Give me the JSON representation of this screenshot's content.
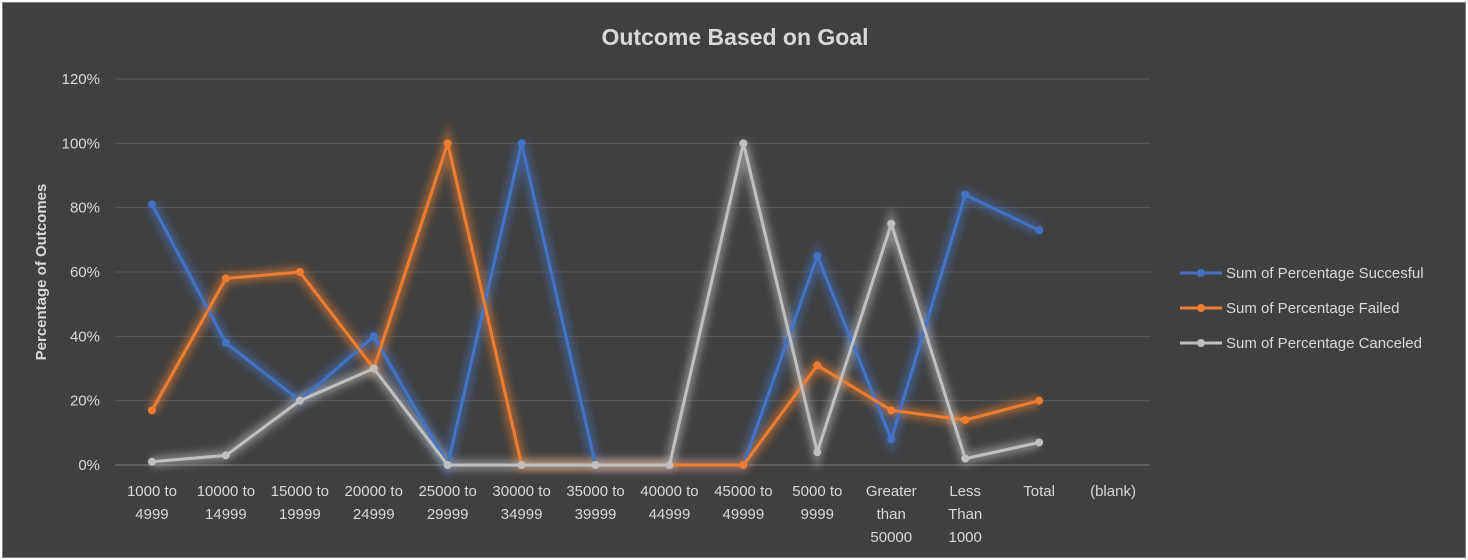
{
  "chart_data": {
    "type": "line",
    "title": "Outcome Based on Goal",
    "xlabel": "",
    "ylabel": "Percentage of Outcomes",
    "categories": [
      [
        "1000 to",
        "4999"
      ],
      [
        "10000 to",
        "14999"
      ],
      [
        "15000 to",
        "19999"
      ],
      [
        "20000 to",
        "24999"
      ],
      [
        "25000 to",
        "29999"
      ],
      [
        "30000 to",
        "34999"
      ],
      [
        "35000 to",
        "39999"
      ],
      [
        "40000 to",
        "44999"
      ],
      [
        "45000 to",
        "49999"
      ],
      [
        "5000 to",
        "9999"
      ],
      [
        "Greater",
        "than",
        "50000"
      ],
      [
        "Less",
        "Than",
        "1000"
      ],
      [
        "Total"
      ],
      [
        "(blank)"
      ]
    ],
    "ylim": [
      0,
      1.2
    ],
    "yticks": [
      0,
      0.2,
      0.4,
      0.6,
      0.8,
      1.0,
      1.2
    ],
    "ytick_labels": [
      "0%",
      "20%",
      "40%",
      "60%",
      "80%",
      "100%",
      "120%"
    ],
    "grid": true,
    "legend_position": "right",
    "series": [
      {
        "name": "Sum of Percentage Succesful",
        "color": "#4472c4",
        "values": [
          0.81,
          0.38,
          0.2,
          0.4,
          0.0,
          1.0,
          0.0,
          0.0,
          0.0,
          0.65,
          0.08,
          0.84,
          0.73,
          null
        ]
      },
      {
        "name": "Sum of Percentage Failed",
        "color": "#ed7d31",
        "values": [
          0.17,
          0.58,
          0.6,
          0.3,
          1.0,
          0.0,
          0.0,
          0.0,
          0.0,
          0.31,
          0.17,
          0.14,
          0.2,
          null
        ]
      },
      {
        "name": "Sum of Percentage Canceled",
        "color": "#c0c0c0",
        "values": [
          0.01,
          0.03,
          0.2,
          0.3,
          0.0,
          0.0,
          0.0,
          0.0,
          1.0,
          0.04,
          0.75,
          0.02,
          0.07,
          null
        ]
      }
    ]
  }
}
